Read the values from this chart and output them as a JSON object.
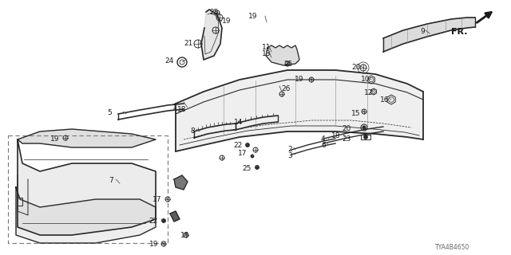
{
  "background_color": "#ffffff",
  "line_color": "#2a2a2a",
  "text_color": "#1a1a1a",
  "diagram_id": "TYA4B4650",
  "figsize": [
    6.4,
    3.2
  ],
  "dpi": 100
}
